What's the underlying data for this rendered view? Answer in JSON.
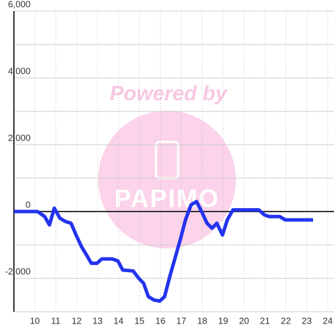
{
  "chart_data": {
    "type": "line",
    "watermark": "Powered by",
    "watermark_logo": "PAPIMO",
    "x": [
      9.0,
      10.13,
      10.47,
      10.7,
      10.93,
      11.2,
      11.47,
      11.73,
      11.97,
      12.23,
      12.47,
      12.7,
      12.97,
      13.2,
      13.7,
      13.97,
      14.2,
      14.7,
      14.97,
      15.2,
      15.43,
      15.7,
      15.97,
      16.2,
      16.47,
      16.7,
      16.97,
      17.2,
      17.47,
      17.73,
      17.97,
      18.23,
      18.47,
      18.7,
      18.97,
      19.2,
      19.47,
      20.7,
      20.97,
      21.2,
      21.7,
      21.97,
      23.3
    ],
    "series": [
      {
        "color": "#2233ee",
        "values": [
          0,
          0,
          -150,
          -400,
          100,
          -200,
          -300,
          -350,
          -700,
          -1050,
          -1300,
          -1550,
          -1550,
          -1420,
          -1420,
          -1480,
          -1750,
          -1780,
          -2000,
          -2150,
          -2550,
          -2650,
          -2680,
          -2550,
          -1900,
          -1400,
          -800,
          -250,
          200,
          300,
          0,
          -350,
          -500,
          -350,
          -700,
          -250,
          50,
          50,
          -100,
          -150,
          -150,
          -250,
          -250
        ]
      }
    ],
    "xlim": [
      9,
      24.3
    ],
    "xticks": [
      10,
      11,
      12,
      13,
      14,
      15,
      16,
      17,
      18,
      19,
      20,
      21,
      22,
      23,
      24
    ],
    "ylim": [
      -3000,
      6000
    ],
    "yticks": [
      {
        "value": 6000,
        "label": "6,000"
      },
      {
        "value": 4000,
        "label": "4,000"
      },
      {
        "value": 2000,
        "label": "2,000"
      },
      0,
      {
        "value": -2000,
        "label": "-2,000"
      }
    ],
    "y_minor_ticks": [
      5000,
      3000,
      1000,
      -1000,
      -3000
    ],
    "grid": true
  }
}
